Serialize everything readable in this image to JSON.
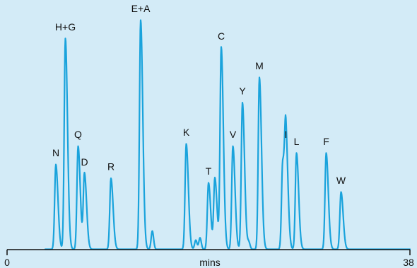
{
  "colors": {
    "background": "#d3ebf7",
    "trace": "#1aa3dc",
    "axis": "#111111"
  },
  "chart_data": {
    "type": "line",
    "title": "",
    "xlabel": "mins",
    "ylabel": "",
    "xlim": [
      0,
      38
    ],
    "ylim": [
      0,
      1
    ],
    "x_ticks": [
      {
        "value": 0,
        "label": "0"
      },
      {
        "value": 38,
        "label": "38"
      }
    ],
    "grid": false,
    "peaks": [
      {
        "label": "N",
        "time": 4.6,
        "height": 0.37
      },
      {
        "label": "H+G",
        "time": 5.5,
        "height": 0.92
      },
      {
        "label": "Q",
        "time": 6.7,
        "height": 0.45
      },
      {
        "label": "D",
        "time": 7.3,
        "height": 0.33
      },
      {
        "label": "R",
        "time": 9.8,
        "height": 0.31
      },
      {
        "label": "E+A",
        "time": 12.6,
        "height": 1.0
      },
      {
        "label": "K",
        "time": 16.9,
        "height": 0.46
      },
      {
        "label": "T",
        "time": 19.0,
        "height": 0.29
      },
      {
        "label": "C",
        "time": 20.2,
        "height": 0.88
      },
      {
        "label": "V",
        "time": 21.3,
        "height": 0.45
      },
      {
        "label": "Y",
        "time": 22.2,
        "height": 0.64
      },
      {
        "label": "M",
        "time": 23.8,
        "height": 0.75
      },
      {
        "label": "I",
        "time": 26.3,
        "height": 0.45
      },
      {
        "label": "L",
        "time": 27.3,
        "height": 0.42
      },
      {
        "label": "F",
        "time": 30.1,
        "height": 0.42
      },
      {
        "label": "W",
        "time": 31.5,
        "height": 0.25
      }
    ],
    "unlabeled_peaks": [
      {
        "time": 13.7,
        "height": 0.08
      },
      {
        "time": 17.8,
        "height": 0.04
      },
      {
        "time": 18.2,
        "height": 0.05
      },
      {
        "time": 19.6,
        "height": 0.31
      },
      {
        "time": 22.8,
        "height": 0.03
      },
      {
        "time": 26.0,
        "height": 0.38
      }
    ]
  }
}
